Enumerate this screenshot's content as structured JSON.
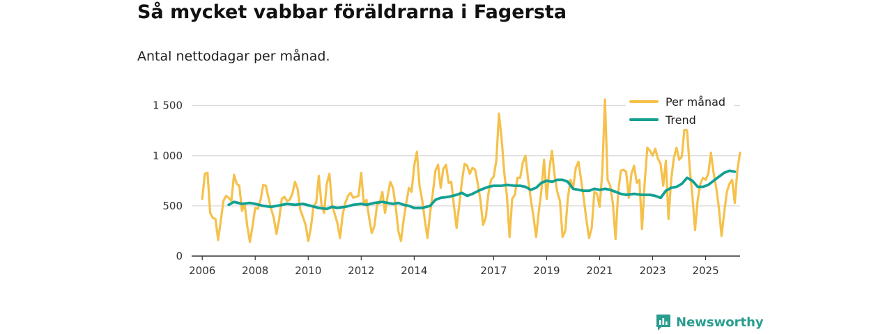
{
  "title": "Så mycket vabbar föräldrarna i Fagersta",
  "subtitle": "Antal nettodagar per månad.",
  "brand": "Newsworthy",
  "colors": {
    "monthly": "#f5c14b",
    "trend": "#13a091",
    "grid": "#d9d9d9",
    "axis": "#333333"
  },
  "chart_data": {
    "type": "line",
    "title": "Så mycket vabbar föräldrarna i Fagersta",
    "subtitle": "Antal nettodagar per månad.",
    "xlabel": "",
    "ylabel": "",
    "xlim": [
      2005.6,
      2026.3
    ],
    "ylim": [
      0,
      1650
    ],
    "x_ticks": [
      2006,
      2008,
      2010,
      2012,
      2014,
      2017,
      2019,
      2021,
      2023,
      2025
    ],
    "y_ticks": [
      0,
      500,
      1000,
      1500
    ],
    "y_tick_labels": [
      "0",
      "500",
      "1 000",
      "1 500"
    ],
    "grid": true,
    "legend": {
      "position": "top-right",
      "entries": [
        "Per månad",
        "Trend"
      ]
    },
    "series": [
      {
        "name": "Per månad",
        "color": "#f5c14b",
        "points": [
          [
            2006.0,
            570
          ],
          [
            2006.1,
            820
          ],
          [
            2006.2,
            830
          ],
          [
            2006.3,
            430
          ],
          [
            2006.4,
            380
          ],
          [
            2006.5,
            370
          ],
          [
            2006.6,
            160
          ],
          [
            2006.7,
            350
          ],
          [
            2006.8,
            550
          ],
          [
            2006.9,
            600
          ],
          [
            2007.0,
            580
          ],
          [
            2007.1,
            550
          ],
          [
            2007.2,
            810
          ],
          [
            2007.3,
            720
          ],
          [
            2007.4,
            700
          ],
          [
            2007.5,
            450
          ],
          [
            2007.6,
            520
          ],
          [
            2007.7,
            300
          ],
          [
            2007.8,
            140
          ],
          [
            2007.9,
            300
          ],
          [
            2008.0,
            480
          ],
          [
            2008.1,
            470
          ],
          [
            2008.2,
            560
          ],
          [
            2008.3,
            710
          ],
          [
            2008.4,
            700
          ],
          [
            2008.5,
            580
          ],
          [
            2008.6,
            470
          ],
          [
            2008.7,
            380
          ],
          [
            2008.8,
            220
          ],
          [
            2008.9,
            360
          ],
          [
            2009.0,
            570
          ],
          [
            2009.1,
            590
          ],
          [
            2009.2,
            550
          ],
          [
            2009.3,
            560
          ],
          [
            2009.4,
            620
          ],
          [
            2009.5,
            740
          ],
          [
            2009.6,
            670
          ],
          [
            2009.7,
            460
          ],
          [
            2009.8,
            390
          ],
          [
            2009.9,
            310
          ],
          [
            2010.0,
            150
          ],
          [
            2010.1,
            280
          ],
          [
            2010.2,
            500
          ],
          [
            2010.3,
            530
          ],
          [
            2010.4,
            800
          ],
          [
            2010.5,
            510
          ],
          [
            2010.6,
            430
          ],
          [
            2010.7,
            720
          ],
          [
            2010.8,
            820
          ],
          [
            2010.9,
            510
          ],
          [
            2011.0,
            420
          ],
          [
            2011.1,
            330
          ],
          [
            2011.2,
            180
          ],
          [
            2011.3,
            410
          ],
          [
            2011.4,
            530
          ],
          [
            2011.5,
            600
          ],
          [
            2011.6,
            630
          ],
          [
            2011.7,
            580
          ],
          [
            2011.8,
            590
          ],
          [
            2011.9,
            600
          ],
          [
            2012.0,
            830
          ],
          [
            2012.1,
            520
          ],
          [
            2012.2,
            560
          ],
          [
            2012.3,
            380
          ],
          [
            2012.4,
            230
          ],
          [
            2012.5,
            300
          ],
          [
            2012.6,
            510
          ],
          [
            2012.7,
            530
          ],
          [
            2012.8,
            640
          ],
          [
            2012.9,
            430
          ],
          [
            2013.0,
            600
          ],
          [
            2013.1,
            740
          ],
          [
            2013.2,
            680
          ],
          [
            2013.3,
            500
          ],
          [
            2013.4,
            250
          ],
          [
            2013.5,
            150
          ],
          [
            2013.6,
            360
          ],
          [
            2013.7,
            530
          ],
          [
            2013.8,
            680
          ],
          [
            2013.9,
            640
          ],
          [
            2014.0,
            900
          ],
          [
            2014.1,
            1040
          ],
          [
            2014.2,
            700
          ],
          [
            2014.3,
            560
          ],
          [
            2014.4,
            360
          ],
          [
            2014.5,
            180
          ],
          [
            2014.6,
            430
          ],
          [
            2014.7,
            620
          ],
          [
            2014.8,
            850
          ],
          [
            2014.9,
            910
          ],
          [
            2015.0,
            680
          ],
          [
            2015.1,
            870
          ],
          [
            2015.2,
            910
          ],
          [
            2015.3,
            730
          ],
          [
            2015.4,
            740
          ],
          [
            2015.5,
            500
          ],
          [
            2015.6,
            280
          ],
          [
            2015.7,
            510
          ],
          [
            2015.8,
            740
          ],
          [
            2015.9,
            920
          ],
          [
            2016.0,
            900
          ],
          [
            2016.1,
            820
          ],
          [
            2016.2,
            880
          ],
          [
            2016.3,
            860
          ],
          [
            2016.4,
            720
          ],
          [
            2016.5,
            560
          ],
          [
            2016.6,
            310
          ],
          [
            2016.7,
            380
          ],
          [
            2016.8,
            620
          ],
          [
            2016.9,
            760
          ],
          [
            2017.0,
            790
          ],
          [
            2017.1,
            950
          ],
          [
            2017.2,
            1420
          ],
          [
            2017.3,
            1170
          ],
          [
            2017.4,
            830
          ],
          [
            2017.5,
            600
          ],
          [
            2017.6,
            190
          ],
          [
            2017.7,
            570
          ],
          [
            2017.8,
            610
          ],
          [
            2017.9,
            780
          ],
          [
            2018.0,
            780
          ],
          [
            2018.1,
            930
          ],
          [
            2018.2,
            1000
          ],
          [
            2018.3,
            770
          ],
          [
            2018.4,
            570
          ],
          [
            2018.5,
            400
          ],
          [
            2018.6,
            190
          ],
          [
            2018.7,
            440
          ],
          [
            2018.8,
            650
          ],
          [
            2018.9,
            960
          ],
          [
            2019.0,
            570
          ],
          [
            2019.1,
            860
          ],
          [
            2019.2,
            1050
          ],
          [
            2019.3,
            800
          ],
          [
            2019.4,
            640
          ],
          [
            2019.5,
            550
          ],
          [
            2019.6,
            190
          ],
          [
            2019.7,
            250
          ],
          [
            2019.8,
            580
          ],
          [
            2019.9,
            760
          ],
          [
            2020.0,
            680
          ],
          [
            2020.1,
            880
          ],
          [
            2020.2,
            940
          ],
          [
            2020.3,
            760
          ],
          [
            2020.4,
            570
          ],
          [
            2020.5,
            360
          ],
          [
            2020.6,
            180
          ],
          [
            2020.7,
            280
          ],
          [
            2020.8,
            640
          ],
          [
            2020.9,
            620
          ],
          [
            2021.0,
            490
          ],
          [
            2021.1,
            840
          ],
          [
            2021.2,
            1560
          ],
          [
            2021.3,
            760
          ],
          [
            2021.4,
            700
          ],
          [
            2021.5,
            520
          ],
          [
            2021.6,
            170
          ],
          [
            2021.7,
            640
          ],
          [
            2021.8,
            850
          ],
          [
            2021.9,
            860
          ],
          [
            2022.0,
            840
          ],
          [
            2022.1,
            580
          ],
          [
            2022.2,
            820
          ],
          [
            2022.3,
            900
          ],
          [
            2022.4,
            730
          ],
          [
            2022.5,
            760
          ],
          [
            2022.6,
            270
          ],
          [
            2022.7,
            730
          ],
          [
            2022.8,
            1080
          ],
          [
            2022.9,
            1050
          ],
          [
            2023.0,
            1000
          ],
          [
            2023.1,
            1070
          ],
          [
            2023.2,
            970
          ],
          [
            2023.3,
            920
          ],
          [
            2023.4,
            700
          ],
          [
            2023.5,
            950
          ],
          [
            2023.6,
            370
          ],
          [
            2023.7,
            760
          ],
          [
            2023.8,
            980
          ],
          [
            2023.9,
            1080
          ],
          [
            2024.0,
            960
          ],
          [
            2024.1,
            990
          ],
          [
            2024.2,
            1270
          ],
          [
            2024.3,
            1250
          ],
          [
            2024.4,
            870
          ],
          [
            2024.5,
            600
          ],
          [
            2024.6,
            260
          ],
          [
            2024.7,
            560
          ],
          [
            2024.8,
            720
          ],
          [
            2024.9,
            780
          ],
          [
            2025.0,
            760
          ],
          [
            2025.1,
            820
          ],
          [
            2025.2,
            1030
          ],
          [
            2025.3,
            830
          ],
          [
            2025.4,
            680
          ],
          [
            2025.5,
            480
          ],
          [
            2025.6,
            200
          ],
          [
            2025.7,
            430
          ],
          [
            2025.8,
            640
          ],
          [
            2025.9,
            720
          ],
          [
            2026.0,
            760
          ],
          [
            2026.1,
            530
          ],
          [
            2026.2,
            860
          ],
          [
            2026.3,
            1030
          ]
        ]
      },
      {
        "name": "Trend",
        "color": "#13a091",
        "points": [
          [
            2007.0,
            510
          ],
          [
            2007.2,
            540
          ],
          [
            2007.5,
            520
          ],
          [
            2007.8,
            530
          ],
          [
            2008.0,
            520
          ],
          [
            2008.3,
            500
          ],
          [
            2008.6,
            490
          ],
          [
            2008.9,
            505
          ],
          [
            2009.2,
            520
          ],
          [
            2009.5,
            510
          ],
          [
            2009.8,
            520
          ],
          [
            2010.1,
            500
          ],
          [
            2010.4,
            480
          ],
          [
            2010.7,
            470
          ],
          [
            2010.9,
            490
          ],
          [
            2011.1,
            480
          ],
          [
            2011.4,
            490
          ],
          [
            2011.7,
            510
          ],
          [
            2012.0,
            520
          ],
          [
            2012.2,
            510
          ],
          [
            2012.5,
            530
          ],
          [
            2012.8,
            540
          ],
          [
            2013.0,
            530
          ],
          [
            2013.2,
            520
          ],
          [
            2013.4,
            530
          ],
          [
            2013.6,
            510
          ],
          [
            2013.8,
            500
          ],
          [
            2014.0,
            480
          ],
          [
            2014.3,
            480
          ],
          [
            2014.6,
            500
          ],
          [
            2014.8,
            560
          ],
          [
            2015.0,
            580
          ],
          [
            2015.3,
            590
          ],
          [
            2015.6,
            610
          ],
          [
            2015.8,
            630
          ],
          [
            2016.0,
            600
          ],
          [
            2016.2,
            620
          ],
          [
            2016.5,
            660
          ],
          [
            2016.8,
            690
          ],
          [
            2017.0,
            700
          ],
          [
            2017.3,
            700
          ],
          [
            2017.5,
            710
          ],
          [
            2017.8,
            700
          ],
          [
            2018.0,
            700
          ],
          [
            2018.2,
            690
          ],
          [
            2018.4,
            660
          ],
          [
            2018.6,
            680
          ],
          [
            2018.8,
            730
          ],
          [
            2019.0,
            750
          ],
          [
            2019.2,
            740
          ],
          [
            2019.4,
            760
          ],
          [
            2019.6,
            760
          ],
          [
            2019.8,
            740
          ],
          [
            2020.0,
            670
          ],
          [
            2020.2,
            660
          ],
          [
            2020.4,
            650
          ],
          [
            2020.6,
            650
          ],
          [
            2020.8,
            670
          ],
          [
            2021.0,
            660
          ],
          [
            2021.2,
            670
          ],
          [
            2021.4,
            660
          ],
          [
            2021.6,
            640
          ],
          [
            2021.8,
            620
          ],
          [
            2022.0,
            610
          ],
          [
            2022.3,
            620
          ],
          [
            2022.6,
            610
          ],
          [
            2022.9,
            610
          ],
          [
            2023.1,
            600
          ],
          [
            2023.3,
            580
          ],
          [
            2023.5,
            650
          ],
          [
            2023.7,
            680
          ],
          [
            2023.9,
            690
          ],
          [
            2024.1,
            720
          ],
          [
            2024.3,
            780
          ],
          [
            2024.5,
            750
          ],
          [
            2024.7,
            690
          ],
          [
            2024.9,
            690
          ],
          [
            2025.1,
            710
          ],
          [
            2025.3,
            750
          ],
          [
            2025.5,
            790
          ],
          [
            2025.7,
            830
          ],
          [
            2025.9,
            850
          ],
          [
            2026.1,
            840
          ]
        ]
      }
    ]
  }
}
